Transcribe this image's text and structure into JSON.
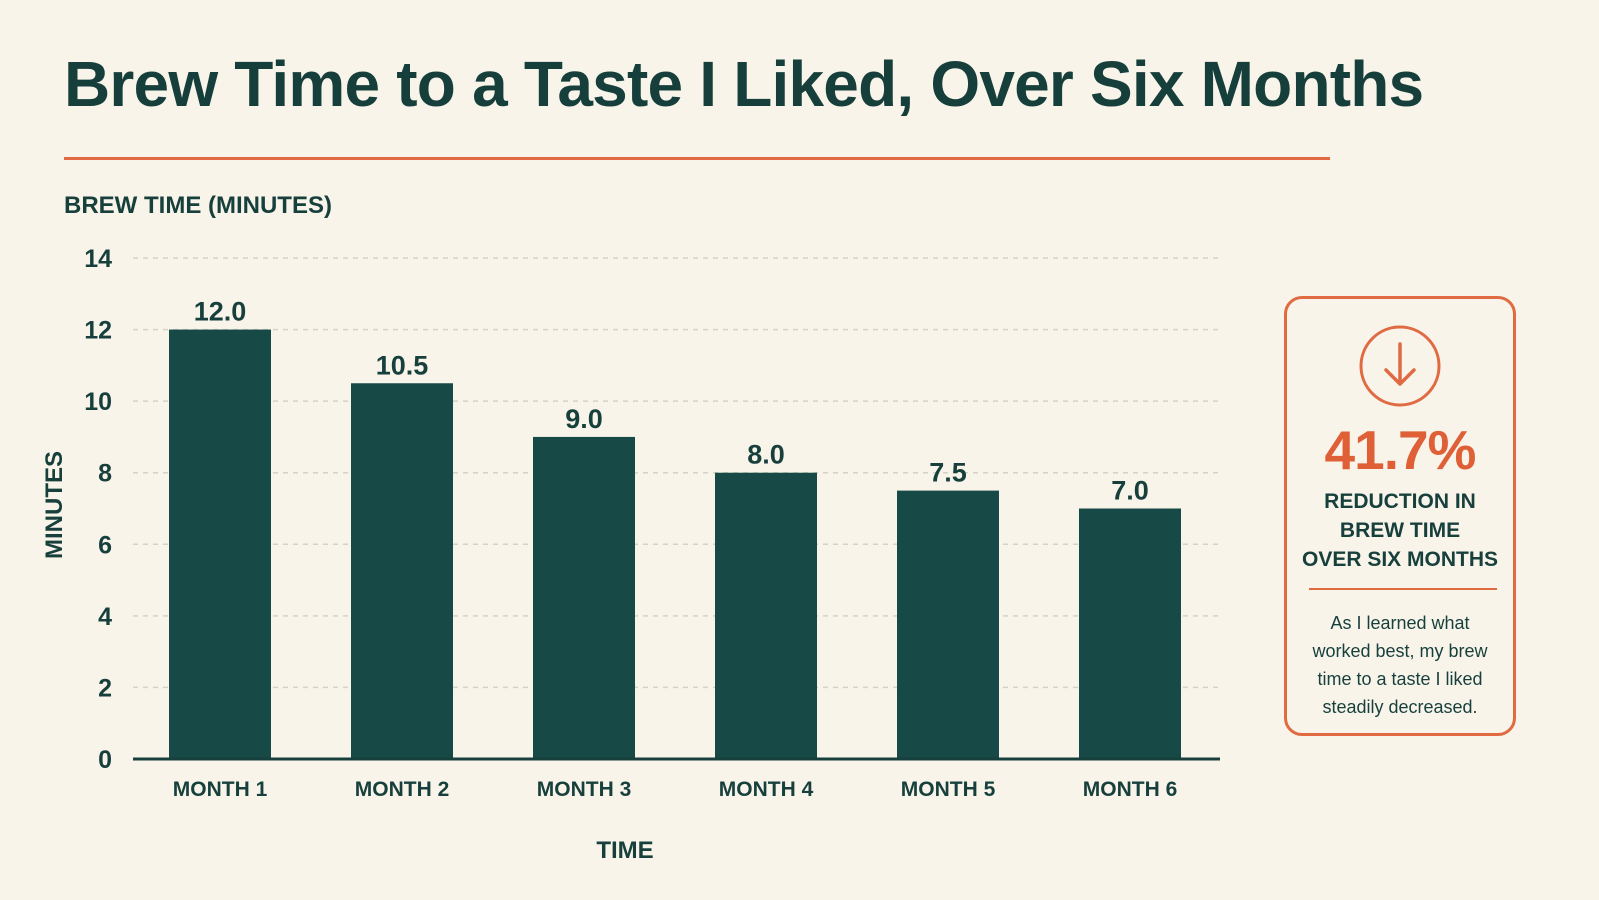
{
  "title": "Brew Time to a Taste I Liked, Over Six Months",
  "colors": {
    "background": "#f8f4ea",
    "primary": "#173f3c",
    "bar": "#174a47",
    "accent": "#e06b42",
    "grid": "#d5d1c7"
  },
  "chart_data": {
    "type": "bar",
    "categories": [
      "MONTH 1",
      "MONTH 2",
      "MONTH 3",
      "MONTH 4",
      "MONTH 5",
      "MONTH 6"
    ],
    "values": [
      12.0,
      10.5,
      9.0,
      8.0,
      7.5,
      7.0
    ],
    "value_labels": [
      "12.0",
      "10.5",
      "9.0",
      "8.0",
      "7.5",
      "7.0"
    ],
    "y_title": "BREW TIME (MINUTES)",
    "ylabel": "MINUTES",
    "xlabel": "TIME",
    "ylim": [
      0,
      14
    ],
    "y_ticks": [
      0,
      2,
      4,
      6,
      8,
      10,
      12,
      14
    ],
    "grid": true
  },
  "callout": {
    "icon": "down-arrow-circle-icon",
    "value": "41.7%",
    "label": "REDUCTION IN\nBREW TIME\nOVER SIX MONTHS",
    "note": "As I learned what\nworked best, my brew\ntime to a taste I liked\nsteadily decreased."
  }
}
